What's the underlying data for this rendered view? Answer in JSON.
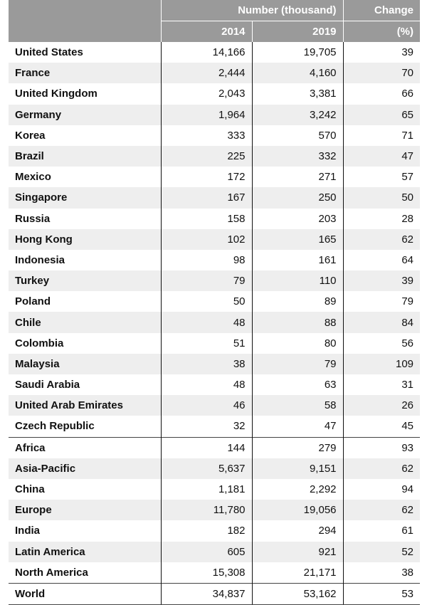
{
  "header": {
    "number_label": "Number (thousand)",
    "change_label": "Change",
    "year_a": "2014",
    "year_b": "2019",
    "change_unit": "(%)"
  },
  "rows": [
    {
      "name": "United States",
      "y2014": "14,166",
      "y2019": "19,705",
      "change": "39"
    },
    {
      "name": "France",
      "y2014": "2,444",
      "y2019": "4,160",
      "change": "70"
    },
    {
      "name": "United Kingdom",
      "y2014": "2,043",
      "y2019": "3,381",
      "change": "66"
    },
    {
      "name": "Germany",
      "y2014": "1,964",
      "y2019": "3,242",
      "change": "65"
    },
    {
      "name": "Korea",
      "y2014": "333",
      "y2019": "570",
      "change": "71"
    },
    {
      "name": "Brazil",
      "y2014": "225",
      "y2019": "332",
      "change": "47"
    },
    {
      "name": "Mexico",
      "y2014": "172",
      "y2019": "271",
      "change": "57"
    },
    {
      "name": "Singapore",
      "y2014": "167",
      "y2019": "250",
      "change": "50"
    },
    {
      "name": "Russia",
      "y2014": "158",
      "y2019": "203",
      "change": "28"
    },
    {
      "name": "Hong Kong",
      "y2014": "102",
      "y2019": "165",
      "change": "62"
    },
    {
      "name": "Indonesia",
      "y2014": "98",
      "y2019": "161",
      "change": "64"
    },
    {
      "name": "Turkey",
      "y2014": "79",
      "y2019": "110",
      "change": "39"
    },
    {
      "name": "Poland",
      "y2014": "50",
      "y2019": "89",
      "change": "79"
    },
    {
      "name": "Chile",
      "y2014": "48",
      "y2019": "88",
      "change": "84"
    },
    {
      "name": "Colombia",
      "y2014": "51",
      "y2019": "80",
      "change": "56"
    },
    {
      "name": "Malaysia",
      "y2014": "38",
      "y2019": "79",
      "change": "109"
    },
    {
      "name": "Saudi Arabia",
      "y2014": "48",
      "y2019": "63",
      "change": "31"
    },
    {
      "name": "United Arab Emirates",
      "y2014": "46",
      "y2019": "58",
      "change": "26"
    },
    {
      "name": "Czech Republic",
      "y2014": "32",
      "y2019": "47",
      "change": "45"
    },
    {
      "name": "Africa",
      "y2014": "144",
      "y2019": "279",
      "change": "93"
    },
    {
      "name": "Asia-Pacific",
      "y2014": "5,637",
      "y2019": "9,151",
      "change": "62"
    },
    {
      "name": "China",
      "y2014": "1,181",
      "y2019": "2,292",
      "change": "94"
    },
    {
      "name": "Europe",
      "y2014": "11,780",
      "y2019": "19,056",
      "change": "62"
    },
    {
      "name": "India",
      "y2014": "182",
      "y2019": "294",
      "change": "61"
    },
    {
      "name": "Latin America",
      "y2014": "605",
      "y2019": "921",
      "change": "52"
    },
    {
      "name": "North America",
      "y2014": "15,308",
      "y2019": "21,171",
      "change": "38"
    },
    {
      "name": "World",
      "y2014": "34,837",
      "y2019": "53,162",
      "change": "53"
    }
  ]
}
